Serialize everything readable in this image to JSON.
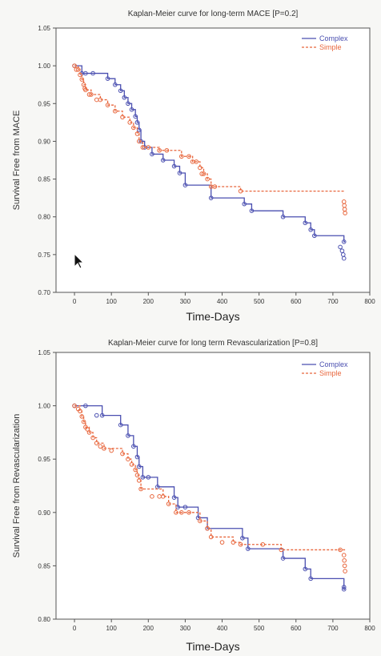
{
  "chart_data": [
    {
      "type": "line",
      "step": true,
      "title": "Kaplan-Meier curve for long-term MACE [P=0.2]",
      "xlabel": "Time-Days",
      "ylabel": "Survival Free from MACE",
      "xlim": [
        -50,
        800
      ],
      "ylim": [
        0.7,
        1.05
      ],
      "xticks": [
        "0",
        "100",
        "200",
        "300",
        "400",
        "500",
        "600",
        "700",
        "800"
      ],
      "yticks": [
        "0.70",
        "0.75",
        "0.80",
        "0.85",
        "0.90",
        "0.95",
        "1.00",
        "1.05"
      ],
      "legend_position": "top-right",
      "series": [
        {
          "name": "Complex",
          "color": "#4a4fb0",
          "dash": false,
          "points": [
            [
              0,
              1.0
            ],
            [
              20,
              0.99
            ],
            [
              90,
              0.983
            ],
            [
              110,
              0.975
            ],
            [
              125,
              0.967
            ],
            [
              135,
              0.958
            ],
            [
              145,
              0.95
            ],
            [
              155,
              0.942
            ],
            [
              165,
              0.933
            ],
            [
              170,
              0.925
            ],
            [
              175,
              0.915
            ],
            [
              180,
              0.9
            ],
            [
              190,
              0.892
            ],
            [
              210,
              0.883
            ],
            [
              240,
              0.875
            ],
            [
              270,
              0.867
            ],
            [
              285,
              0.858
            ],
            [
              300,
              0.842
            ],
            [
              370,
              0.825
            ],
            [
              460,
              0.817
            ],
            [
              480,
              0.808
            ],
            [
              565,
              0.8
            ],
            [
              625,
              0.792
            ],
            [
              640,
              0.783
            ],
            [
              650,
              0.775
            ],
            [
              730,
              0.767
            ]
          ],
          "censored": [
            [
              30,
              0.99
            ],
            [
              50,
              0.99
            ],
            [
              720,
              0.76
            ],
            [
              725,
              0.755
            ],
            [
              728,
              0.75
            ],
            [
              730,
              0.745
            ]
          ]
        },
        {
          "name": "Simple",
          "color": "#e8663c",
          "dash": true,
          "points": [
            [
              0,
              1.0
            ],
            [
              10,
              0.995
            ],
            [
              15,
              0.988
            ],
            [
              20,
              0.982
            ],
            [
              25,
              0.975
            ],
            [
              30,
              0.968
            ],
            [
              45,
              0.962
            ],
            [
              70,
              0.955
            ],
            [
              90,
              0.948
            ],
            [
              110,
              0.94
            ],
            [
              130,
              0.932
            ],
            [
              150,
              0.925
            ],
            [
              160,
              0.918
            ],
            [
              170,
              0.91
            ],
            [
              175,
              0.9
            ],
            [
              185,
              0.892
            ],
            [
              230,
              0.888
            ],
            [
              290,
              0.88
            ],
            [
              320,
              0.873
            ],
            [
              340,
              0.865
            ],
            [
              350,
              0.857
            ],
            [
              360,
              0.85
            ],
            [
              370,
              0.84
            ],
            [
              450,
              0.834
            ]
          ],
          "censored": [
            [
              5,
              0.995
            ],
            [
              28,
              0.97
            ],
            [
              40,
              0.962
            ],
            [
              60,
              0.955
            ],
            [
              200,
              0.892
            ],
            [
              250,
              0.888
            ],
            [
              310,
              0.88
            ],
            [
              330,
              0.873
            ],
            [
              345,
              0.857
            ],
            [
              380,
              0.84
            ],
            [
              730,
              0.82
            ],
            [
              731,
              0.815
            ],
            [
              732,
              0.81
            ],
            [
              733,
              0.805
            ]
          ]
        }
      ]
    },
    {
      "type": "line",
      "step": true,
      "title": "Kaplan-Meier curve for long term Revascularization [P=0.8]",
      "xlabel": "Time-Days",
      "ylabel": "Survival Free from Revascularization",
      "xlim": [
        -50,
        800
      ],
      "ylim": [
        0.8,
        1.05
      ],
      "xticks": [
        "0",
        "100",
        "200",
        "300",
        "400",
        "500",
        "600",
        "700",
        "800"
      ],
      "yticks": [
        "0.80",
        "0.85",
        "0.90",
        "0.95",
        "1.00",
        "1.05"
      ],
      "legend_position": "top-right",
      "series": [
        {
          "name": "Complex",
          "color": "#4a4fb0",
          "dash": false,
          "points": [
            [
              0,
              1.0
            ],
            [
              75,
              0.991
            ],
            [
              125,
              0.982
            ],
            [
              145,
              0.972
            ],
            [
              160,
              0.962
            ],
            [
              170,
              0.952
            ],
            [
              175,
              0.943
            ],
            [
              185,
              0.933
            ],
            [
              225,
              0.924
            ],
            [
              270,
              0.914
            ],
            [
              280,
              0.905
            ],
            [
              335,
              0.895
            ],
            [
              360,
              0.885
            ],
            [
              455,
              0.876
            ],
            [
              470,
              0.866
            ],
            [
              565,
              0.857
            ],
            [
              625,
              0.847
            ],
            [
              640,
              0.838
            ],
            [
              730,
              0.828
            ]
          ],
          "censored": [
            [
              30,
              1.0
            ],
            [
              60,
              0.991
            ],
            [
              200,
              0.933
            ],
            [
              300,
              0.905
            ],
            [
              730,
              0.83
            ]
          ]
        },
        {
          "name": "Simple",
          "color": "#e8663c",
          "dash": true,
          "points": [
            [
              0,
              1.0
            ],
            [
              15,
              0.995
            ],
            [
              20,
              0.99
            ],
            [
              25,
              0.985
            ],
            [
              30,
              0.98
            ],
            [
              40,
              0.975
            ],
            [
              50,
              0.97
            ],
            [
              60,
              0.965
            ],
            [
              80,
              0.96
            ],
            [
              130,
              0.955
            ],
            [
              145,
              0.95
            ],
            [
              155,
              0.945
            ],
            [
              165,
              0.94
            ],
            [
              170,
              0.935
            ],
            [
              175,
              0.93
            ],
            [
              180,
              0.922
            ],
            [
              240,
              0.915
            ],
            [
              255,
              0.908
            ],
            [
              275,
              0.9
            ],
            [
              340,
              0.892
            ],
            [
              360,
              0.885
            ],
            [
              370,
              0.877
            ],
            [
              430,
              0.872
            ],
            [
              450,
              0.87
            ],
            [
              560,
              0.865
            ]
          ],
          "censored": [
            [
              10,
              0.997
            ],
            [
              35,
              0.978
            ],
            [
              70,
              0.962
            ],
            [
              100,
              0.958
            ],
            [
              210,
              0.915
            ],
            [
              230,
              0.915
            ],
            [
              290,
              0.9
            ],
            [
              310,
              0.9
            ],
            [
              400,
              0.872
            ],
            [
              510,
              0.87
            ],
            [
              720,
              0.865
            ],
            [
              730,
              0.86
            ],
            [
              731,
              0.855
            ],
            [
              732,
              0.85
            ],
            [
              733,
              0.845
            ]
          ]
        }
      ]
    }
  ]
}
